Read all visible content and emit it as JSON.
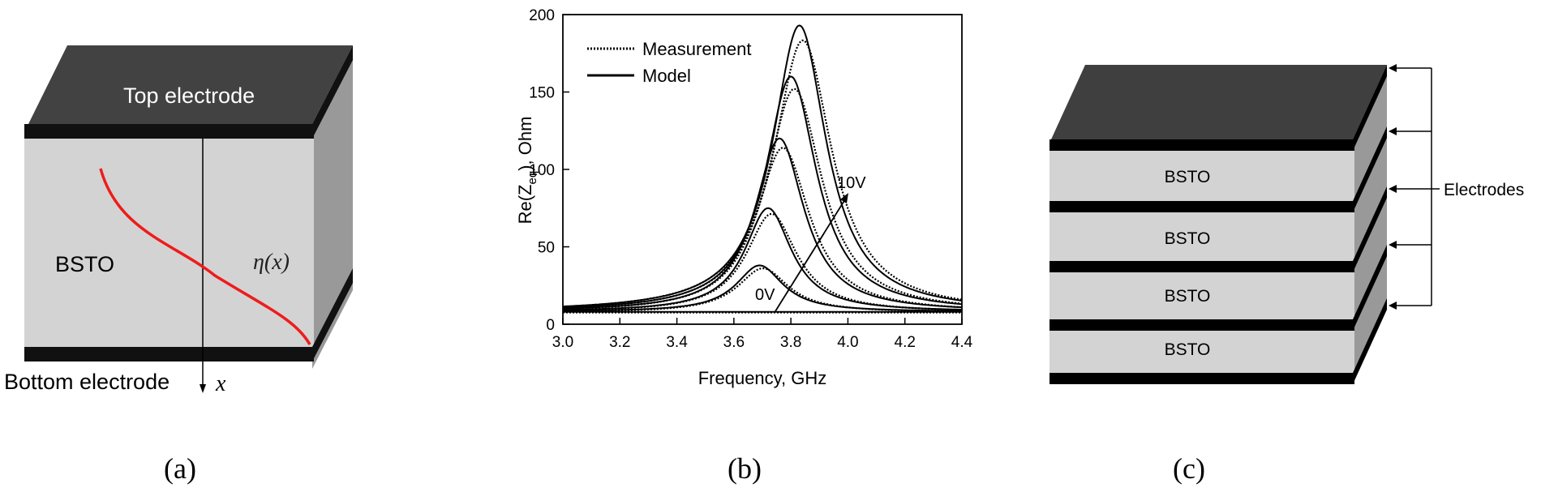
{
  "panel_a": {
    "top_electrode_label": "Top electrode",
    "bstO_label": "BSTO",
    "eta_label": "η(x)",
    "bottom_electrode_label": "Bottom electrode",
    "x_axis_label": "x",
    "caption": "(a)"
  },
  "panel_b": {
    "caption": "(b)",
    "annotation_low": "0V",
    "annotation_high": "10V"
  },
  "panel_c": {
    "layer_labels": [
      "BSTO",
      "BSTO",
      "BSTO",
      "BSTO"
    ],
    "electrodes_label": "Electrodes",
    "caption": "(c)"
  },
  "chart_data": {
    "type": "line",
    "xlabel": "Frequency, GHz",
    "ylabel": "Re(Z",
    "ylabel_sub": "eq",
    "ylabel_suffix": "), Ohm",
    "xlim": [
      3.0,
      4.4
    ],
    "ylim": [
      0,
      200
    ],
    "xticks": [
      "3.0",
      "3.2",
      "3.4",
      "3.6",
      "3.8",
      "4.0",
      "4.2",
      "4.4"
    ],
    "yticks": [
      "0",
      "50",
      "100",
      "150",
      "200"
    ],
    "legend": [
      {
        "name": "Measurement",
        "style": "dotted"
      },
      {
        "name": "Model",
        "style": "solid"
      }
    ],
    "legend_position": "top-left",
    "grid": false,
    "series": [
      {
        "peak_x": 3.69,
        "peak_y": 8,
        "width": 0.1,
        "baseline": 8
      },
      {
        "peak_x": 3.69,
        "peak_y": 38,
        "width": 0.1,
        "baseline": 8
      },
      {
        "peak_x": 3.72,
        "peak_y": 75,
        "width": 0.1,
        "baseline": 8
      },
      {
        "peak_x": 3.76,
        "peak_y": 120,
        "width": 0.105,
        "baseline": 8
      },
      {
        "peak_x": 3.8,
        "peak_y": 160,
        "width": 0.11,
        "baseline": 8
      },
      {
        "peak_x": 3.83,
        "peak_y": 193,
        "width": 0.115,
        "baseline": 8
      }
    ]
  }
}
